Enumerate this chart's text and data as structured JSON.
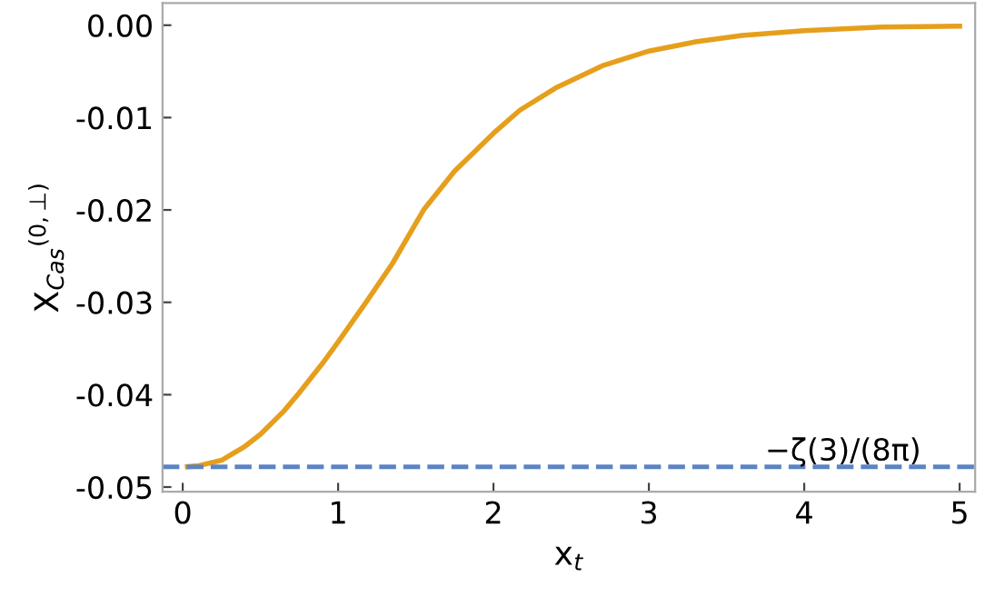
{
  "chart_data": {
    "type": "line",
    "xlabel": "x$_{t}$",
    "ylabel": "X$_{Cas}$$^{(0,⊥)}$",
    "series": [
      {
        "color": "#e69f1c",
        "x": [
          0.03,
          0.1,
          0.25,
          0.4,
          0.5,
          0.65,
          0.75,
          0.9,
          1.0,
          1.18,
          1.35,
          1.55,
          1.75,
          2.0,
          2.17,
          2.4,
          2.7,
          3.0,
          3.3,
          3.6,
          4.0,
          4.5,
          5.0
        ],
        "values": [
          -0.0478,
          -0.0477,
          -0.0471,
          -0.0456,
          -0.0443,
          -0.0418,
          -0.0398,
          -0.0366,
          -0.0343,
          -0.03,
          -0.0258,
          -0.02,
          -0.0158,
          -0.0117,
          -0.0092,
          -0.0068,
          -0.0044,
          -0.0028,
          -0.0018,
          -0.0011,
          -0.0006,
          -0.0002,
          -0.0001
        ]
      }
    ],
    "xlim": [
      -0.13,
      5.1
    ],
    "ylim": [
      -0.0505,
      0.0024
    ],
    "xticks": [
      0,
      1,
      2,
      3,
      4,
      5
    ],
    "yticks": [
      {
        "value": 0,
        "label": "0.00"
      },
      {
        "value": -0.01,
        "label": "-0.01"
      },
      {
        "value": -0.02,
        "label": "-0.02"
      },
      {
        "value": -0.03,
        "label": "-0.03"
      },
      {
        "value": -0.04,
        "label": "-0.04"
      },
      {
        "value": -0.05,
        "label": "-0.05"
      }
    ],
    "ref_lines": [
      {
        "axis": "y",
        "value": -0.0478,
        "label": "−ζ(3)/(8π)",
        "color": "#5b84c4",
        "line_style": "dashed"
      }
    ],
    "grid": false,
    "legend": false
  }
}
